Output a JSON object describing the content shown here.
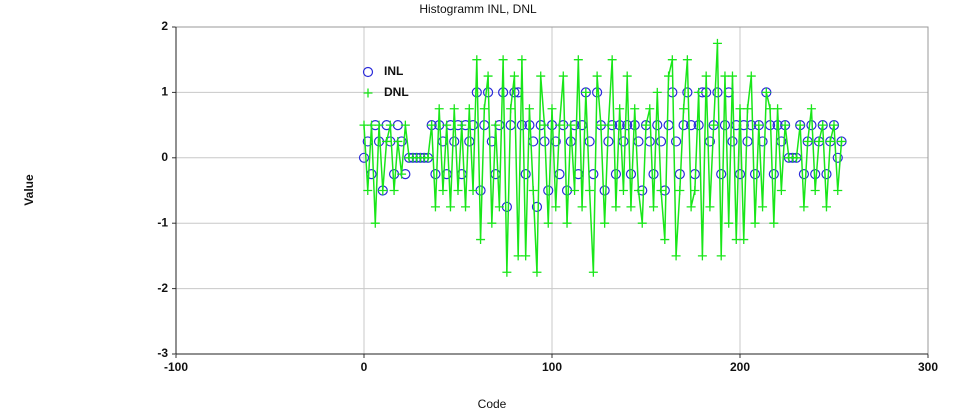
{
  "chart_data": {
    "type": "scatter",
    "title": "Histogramm INL, DNL",
    "x_label": "Code",
    "y_label": "Value",
    "xlim": [
      -100,
      300
    ],
    "xticks": [
      -100,
      0,
      100,
      200,
      300
    ],
    "ylim": [
      -3,
      2
    ],
    "yticks": [
      -3,
      -2,
      -1,
      0,
      1,
      2
    ],
    "grid": true,
    "legend": "upper left",
    "x": [
      0,
      2,
      4,
      6,
      8,
      10,
      12,
      14,
      16,
      18,
      20,
      22,
      24,
      26,
      28,
      30,
      32,
      34,
      36,
      38,
      40,
      42,
      44,
      46,
      48,
      50,
      52,
      54,
      56,
      58,
      60,
      62,
      64,
      66,
      68,
      70,
      72,
      74,
      76,
      78,
      80,
      82,
      84,
      86,
      88,
      90,
      92,
      94,
      96,
      98,
      100,
      102,
      104,
      106,
      108,
      110,
      112,
      114,
      116,
      118,
      120,
      122,
      124,
      126,
      128,
      130,
      132,
      134,
      136,
      138,
      140,
      142,
      144,
      146,
      148,
      150,
      152,
      154,
      156,
      158,
      160,
      162,
      164,
      166,
      168,
      170,
      172,
      174,
      176,
      178,
      180,
      182,
      184,
      186,
      188,
      190,
      192,
      194,
      196,
      198,
      200,
      202,
      204,
      206,
      208,
      210,
      212,
      214,
      216,
      218,
      220,
      222,
      224,
      226,
      228,
      230,
      232,
      234,
      236,
      238,
      240,
      242,
      244,
      246,
      248,
      250,
      252,
      254
    ],
    "series": [
      {
        "name": "INL",
        "color": "#2b2bd9",
        "marker": "circle",
        "line": false,
        "values": [
          0,
          0.25,
          -0.25,
          0.5,
          0.25,
          -0.5,
          0.5,
          0.25,
          -0.25,
          0.5,
          0.25,
          -0.25,
          0,
          0,
          0,
          0,
          0,
          0,
          0.5,
          -0.25,
          0.5,
          0.25,
          -0.25,
          0.5,
          0.25,
          0.5,
          -0.25,
          0.5,
          0.25,
          0.5,
          1,
          -0.5,
          0.5,
          1,
          0.25,
          -0.25,
          0.5,
          1,
          -0.75,
          0.5,
          1,
          1,
          0.5,
          -0.25,
          0.5,
          0.25,
          -0.75,
          0.5,
          0.25,
          -0.5,
          0.5,
          0.25,
          -0.25,
          0.5,
          -0.5,
          0.25,
          0.5,
          -0.25,
          0.5,
          1,
          0.25,
          -0.25,
          1,
          0.5,
          -0.5,
          0.25,
          0.5,
          -0.25,
          0.5,
          0.25,
          0.5,
          -0.25,
          0.5,
          0.25,
          -0.5,
          0.5,
          0.25,
          -0.25,
          0.5,
          0.25,
          -0.5,
          0.5,
          1,
          0.25,
          -0.25,
          0.5,
          1,
          0.5,
          -0.25,
          0.5,
          1,
          1,
          0.25,
          0.5,
          1,
          -0.25,
          0.5,
          1,
          0.25,
          0.5,
          -0.25,
          0.5,
          0.25,
          0.5,
          -0.25,
          0.5,
          0.25,
          1,
          0.5,
          -0.25,
          0.5,
          0.25,
          0.5,
          0,
          0,
          0,
          0.5,
          -0.25,
          0.25,
          0.5,
          -0.25,
          0.25,
          0.5,
          -0.25,
          0.25,
          0.5,
          0,
          0.25
        ]
      },
      {
        "name": "DNL",
        "color": "#19e619",
        "marker": "plus",
        "line": true,
        "values": [
          0.5,
          -0.5,
          0.5,
          -1,
          0.5,
          -0.5,
          0.25,
          0.5,
          -0.5,
          0.25,
          -0.25,
          0.5,
          0,
          0,
          0,
          0,
          0,
          0,
          0.5,
          -0.75,
          0.75,
          -0.5,
          0.5,
          -0.75,
          0.75,
          -0.5,
          0.5,
          -0.75,
          0.75,
          -0.5,
          1.5,
          -1.25,
          0.75,
          1.25,
          -1,
          0.5,
          -0.75,
          1.5,
          -1.75,
          0.75,
          1.25,
          -1.5,
          1.5,
          -1.5,
          0.75,
          -0.5,
          -1.75,
          1.25,
          0.5,
          -1,
          0.75,
          -0.75,
          0.5,
          1.25,
          -1,
          0.5,
          -0.5,
          1.5,
          -0.75,
          1,
          -0.5,
          -1.75,
          1.25,
          0.5,
          -1,
          0.5,
          1.5,
          -0.75,
          0.75,
          -0.5,
          1.25,
          -0.75,
          0.75,
          -0.5,
          -1,
          0.5,
          0.75,
          -0.75,
          1,
          -0.5,
          -1.25,
          1.25,
          1.5,
          -1.5,
          -0.5,
          0.75,
          1.5,
          -0.75,
          -0.5,
          1,
          -1.5,
          1.25,
          -0.75,
          0.5,
          1.75,
          -1.5,
          1.25,
          -1,
          1.25,
          -1.25,
          0.75,
          -1.25,
          0.75,
          1.25,
          -1,
          0.5,
          -0.75,
          1,
          0.75,
          -1,
          0.75,
          -0.5,
          0.5,
          0,
          0,
          0,
          0.5,
          -0.75,
          0.25,
          0.75,
          -0.5,
          0.25,
          0.5,
          -0.75,
          0.25,
          0.5,
          -0.5,
          0.25
        ]
      }
    ]
  }
}
